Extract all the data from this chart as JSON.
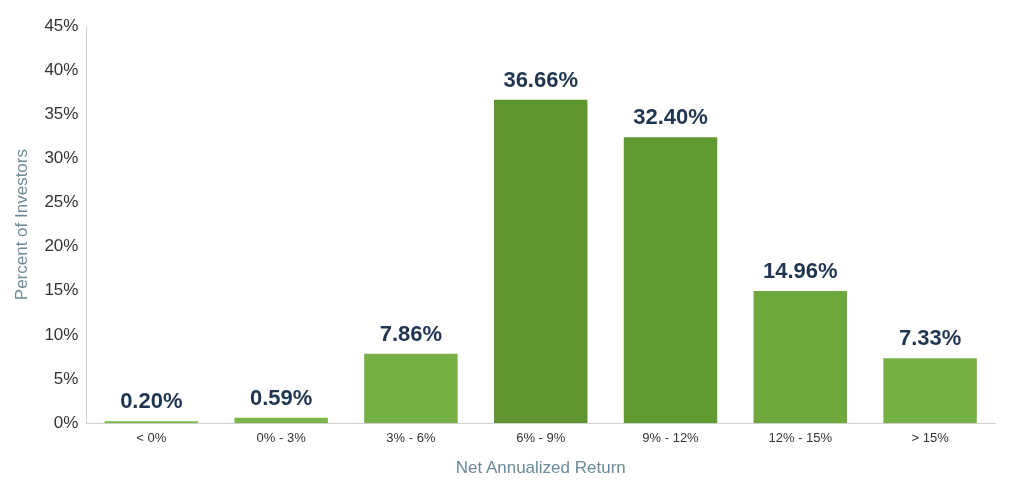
{
  "chart_data": {
    "type": "bar",
    "xlabel": "Net Annualized Return",
    "ylabel": "Percent of Investors",
    "categories": [
      "< 0%",
      "0% - 3%",
      "3% - 6%",
      "6% - 9%",
      "9% - 12%",
      "12% - 15%",
      "> 15%"
    ],
    "values": [
      0.2,
      0.59,
      7.86,
      36.66,
      32.4,
      14.96,
      7.33
    ],
    "colors": [
      "#7ab648",
      "#7ab648",
      "#74b043",
      "#5e952e",
      "#619a30",
      "#6ea83d",
      "#74b043"
    ],
    "value_labels": [
      "0.20%",
      "0.59%",
      "7.86%",
      "36.66%",
      "32.40%",
      "14.96%",
      "7.33%"
    ],
    "ylim": [
      0,
      45
    ],
    "yticks": [
      {
        "value": 0,
        "label": "0%"
      },
      {
        "value": 5,
        "label": "5%"
      },
      {
        "value": 10,
        "label": "10%"
      },
      {
        "value": 15,
        "label": "15%"
      },
      {
        "value": 20,
        "label": "20%"
      },
      {
        "value": 25,
        "label": "25%"
      },
      {
        "value": 30,
        "label": "30%"
      },
      {
        "value": 35,
        "label": "35%"
      },
      {
        "value": 40,
        "label": "40%"
      },
      {
        "value": 45,
        "label": "45%"
      }
    ],
    "grid": false,
    "legend": false
  }
}
